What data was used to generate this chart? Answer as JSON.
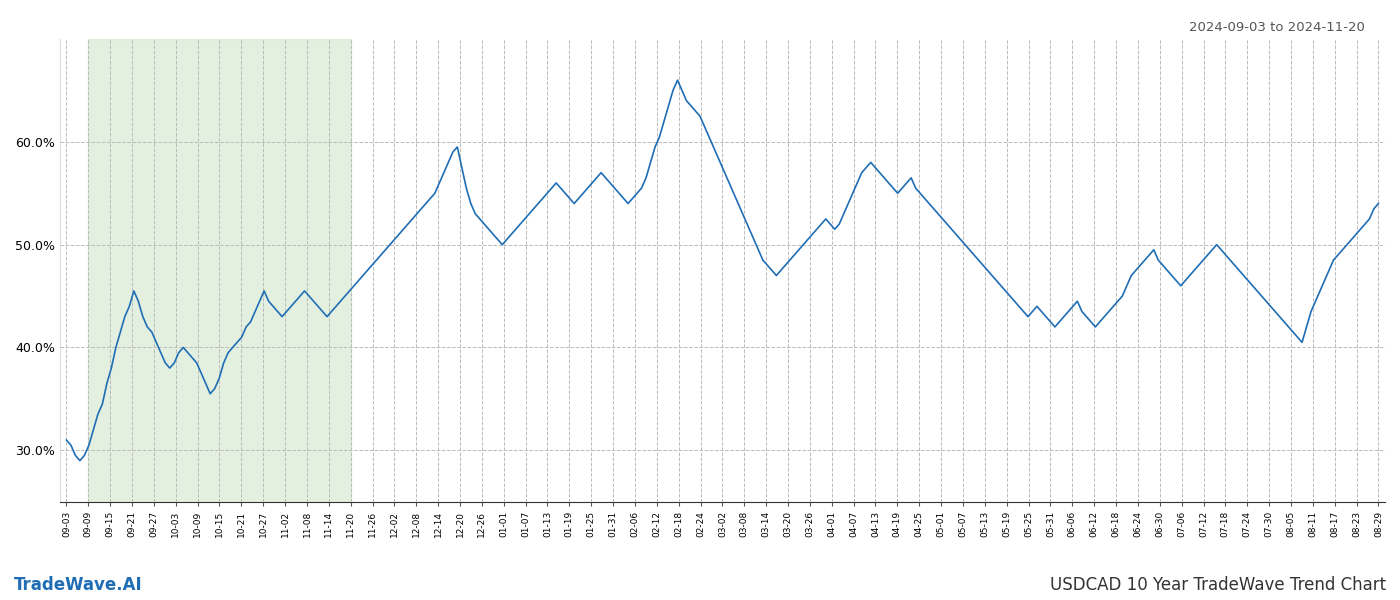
{
  "title_top_right": "2024-09-03 to 2024-11-20",
  "title_bottom_left": "TradeWave.AI",
  "title_bottom_right": "USDCAD 10 Year TradeWave Trend Chart",
  "line_color": "#1f6eb5",
  "line_width": 1.2,
  "shaded_region_color": "#d4e8d0",
  "shaded_region_alpha": 0.65,
  "background_color": "#ffffff",
  "grid_color": "#bbbbbb",
  "grid_style": "--",
  "ylim": [
    25,
    70
  ],
  "yticks": [
    30,
    40,
    50,
    60
  ],
  "x_labels": [
    "09-03",
    "09-09",
    "09-15",
    "09-21",
    "09-27",
    "10-03",
    "10-09",
    "10-15",
    "10-21",
    "10-27",
    "11-02",
    "11-08",
    "11-14",
    "11-20",
    "11-26",
    "12-02",
    "12-08",
    "12-14",
    "12-20",
    "12-26",
    "01-01",
    "01-07",
    "01-13",
    "01-19",
    "01-25",
    "01-31",
    "02-06",
    "02-12",
    "02-18",
    "02-24",
    "03-02",
    "03-08",
    "03-14",
    "03-20",
    "03-26",
    "04-01",
    "04-07",
    "04-13",
    "04-19",
    "04-25",
    "05-01",
    "05-07",
    "05-13",
    "05-19",
    "05-25",
    "05-31",
    "06-06",
    "06-12",
    "06-18",
    "06-24",
    "06-30",
    "07-06",
    "07-12",
    "07-18",
    "07-24",
    "07-30",
    "08-05",
    "08-11",
    "08-17",
    "08-23",
    "08-29"
  ],
  "shaded_start_label": "09-09",
  "shaded_end_label": "11-20",
  "values": [
    31.0,
    30.5,
    29.5,
    29.0,
    29.5,
    30.5,
    32.0,
    33.5,
    34.5,
    36.5,
    38.0,
    40.0,
    41.5,
    43.0,
    44.0,
    45.5,
    44.5,
    43.0,
    42.0,
    41.5,
    40.5,
    39.5,
    38.5,
    38.0,
    38.5,
    39.5,
    40.0,
    39.5,
    39.0,
    38.5,
    37.5,
    36.5,
    35.5,
    36.0,
    37.0,
    38.5,
    39.5,
    40.0,
    40.5,
    41.0,
    42.0,
    42.5,
    43.5,
    44.5,
    45.5,
    44.5,
    44.0,
    43.5,
    43.0,
    43.5,
    44.0,
    44.5,
    45.0,
    45.5,
    45.0,
    44.5,
    44.0,
    43.5,
    43.0,
    43.5,
    44.0,
    44.5,
    45.0,
    45.5,
    46.0,
    46.5,
    47.0,
    47.5,
    48.0,
    48.5,
    49.0,
    49.5,
    50.0,
    50.5,
    51.0,
    51.5,
    52.0,
    52.5,
    53.0,
    53.5,
    54.0,
    54.5,
    55.0,
    56.0,
    57.0,
    58.0,
    59.0,
    59.5,
    57.5,
    55.5,
    54.0,
    53.0,
    52.5,
    52.0,
    51.5,
    51.0,
    50.5,
    50.0,
    50.5,
    51.0,
    51.5,
    52.0,
    52.5,
    53.0,
    53.5,
    54.0,
    54.5,
    55.0,
    55.5,
    56.0,
    55.5,
    55.0,
    54.5,
    54.0,
    54.5,
    55.0,
    55.5,
    56.0,
    56.5,
    57.0,
    56.5,
    56.0,
    55.5,
    55.0,
    54.5,
    54.0,
    54.5,
    55.0,
    55.5,
    56.5,
    58.0,
    59.5,
    60.5,
    62.0,
    63.5,
    65.0,
    66.0,
    65.0,
    64.0,
    63.5,
    63.0,
    62.5,
    61.5,
    60.5,
    59.5,
    58.5,
    57.5,
    56.5,
    55.5,
    54.5,
    53.5,
    52.5,
    51.5,
    50.5,
    49.5,
    48.5,
    48.0,
    47.5,
    47.0,
    47.5,
    48.0,
    48.5,
    49.0,
    49.5,
    50.0,
    50.5,
    51.0,
    51.5,
    52.0,
    52.5,
    52.0,
    51.5,
    52.0,
    53.0,
    54.0,
    55.0,
    56.0,
    57.0,
    57.5,
    58.0,
    57.5,
    57.0,
    56.5,
    56.0,
    55.5,
    55.0,
    55.5,
    56.0,
    56.5,
    55.5,
    55.0,
    54.5,
    54.0,
    53.5,
    53.0,
    52.5,
    52.0,
    51.5,
    51.0,
    50.5,
    50.0,
    49.5,
    49.0,
    48.5,
    48.0,
    47.5,
    47.0,
    46.5,
    46.0,
    45.5,
    45.0,
    44.5,
    44.0,
    43.5,
    43.0,
    43.5,
    44.0,
    43.5,
    43.0,
    42.5,
    42.0,
    42.5,
    43.0,
    43.5,
    44.0,
    44.5,
    43.5,
    43.0,
    42.5,
    42.0,
    42.5,
    43.0,
    43.5,
    44.0,
    44.5,
    45.0,
    46.0,
    47.0,
    47.5,
    48.0,
    48.5,
    49.0,
    49.5,
    48.5,
    48.0,
    47.5,
    47.0,
    46.5,
    46.0,
    46.5,
    47.0,
    47.5,
    48.0,
    48.5,
    49.0,
    49.5,
    50.0,
    49.5,
    49.0,
    48.5,
    48.0,
    47.5,
    47.0,
    46.5,
    46.0,
    45.5,
    45.0,
    44.5,
    44.0,
    43.5,
    43.0,
    42.5,
    42.0,
    41.5,
    41.0,
    40.5,
    42.0,
    43.5,
    44.5,
    45.5,
    46.5,
    47.5,
    48.5,
    49.0,
    49.5,
    50.0,
    50.5,
    51.0,
    51.5,
    52.0,
    52.5,
    53.5,
    54.0
  ]
}
